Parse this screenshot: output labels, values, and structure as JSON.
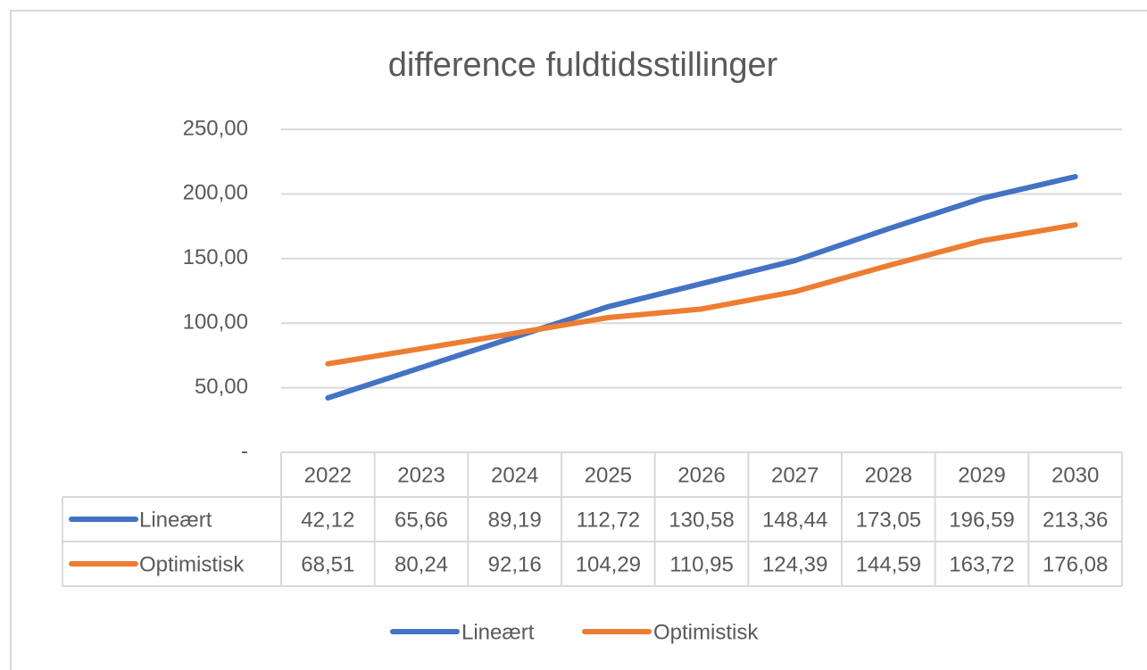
{
  "chart_data": {
    "type": "line",
    "title": "difference fuldtidsstillinger",
    "categories": [
      "2022",
      "2023",
      "2024",
      "2025",
      "2026",
      "2027",
      "2028",
      "2029",
      "2030"
    ],
    "series": [
      {
        "name": "Lineært",
        "color": "#4472c4",
        "values": [
          42.12,
          65.66,
          89.19,
          112.72,
          130.58,
          148.44,
          173.05,
          196.59,
          213.36
        ],
        "value_labels": [
          "42,12",
          "65,66",
          "89,19",
          "112,72",
          "130,58",
          "148,44",
          "173,05",
          "196,59",
          "213,36"
        ]
      },
      {
        "name": "Optimistisk",
        "color": "#ed7d31",
        "values": [
          68.51,
          80.24,
          92.16,
          104.29,
          110.95,
          124.39,
          144.59,
          163.72,
          176.08
        ],
        "value_labels": [
          "68,51",
          "80,24",
          "92,16",
          "104,29",
          "110,95",
          "124,39",
          "144,59",
          "163,72",
          "176,08"
        ]
      }
    ],
    "ylim": [
      0,
      250
    ],
    "yticks": [
      {
        "value": 0,
        "label": "-"
      },
      {
        "value": 50,
        "label": "50,00"
      },
      {
        "value": 100,
        "label": "100,00"
      },
      {
        "value": 150,
        "label": "150,00"
      },
      {
        "value": 200,
        "label": "200,00"
      },
      {
        "value": 250,
        "label": "250,00"
      }
    ],
    "grid": true,
    "legend": "bottom"
  }
}
